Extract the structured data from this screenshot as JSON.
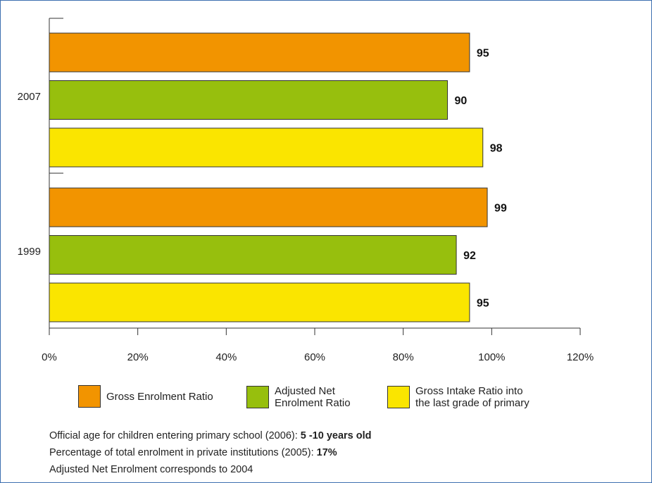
{
  "chart_data": {
    "type": "bar",
    "orientation": "horizontal",
    "categories": [
      "2007",
      "1999"
    ],
    "series": [
      {
        "name": "Gross Enrolment Ratio",
        "color": "#F29400",
        "values": [
          95,
          99
        ]
      },
      {
        "name": "Adjusted Net\nEnrolment Ratio",
        "color": "#97BF0D",
        "values": [
          90,
          92
        ]
      },
      {
        "name": "Gross Intake Ratio into\nthe last grade of primary",
        "color": "#FAE500",
        "values": [
          98,
          95
        ]
      }
    ],
    "xlim": [
      0,
      120
    ],
    "xticks": [
      "0%",
      "20%",
      "40%",
      "60%",
      "80%",
      "100%",
      "120%"
    ],
    "xtick_values": [
      0,
      20,
      40,
      60,
      80,
      100,
      120
    ],
    "grid": false,
    "legend_position": "bottom"
  },
  "notes": [
    {
      "text": "Official age for children entering primary school (2006): ",
      "bold": "5 -10 years old"
    },
    {
      "text": "Percentage of total enrolment in private institutions (2005): ",
      "bold": "17%"
    },
    {
      "text": "Adjusted Net Enrolment corresponds to 2004",
      "bold": ""
    }
  ]
}
